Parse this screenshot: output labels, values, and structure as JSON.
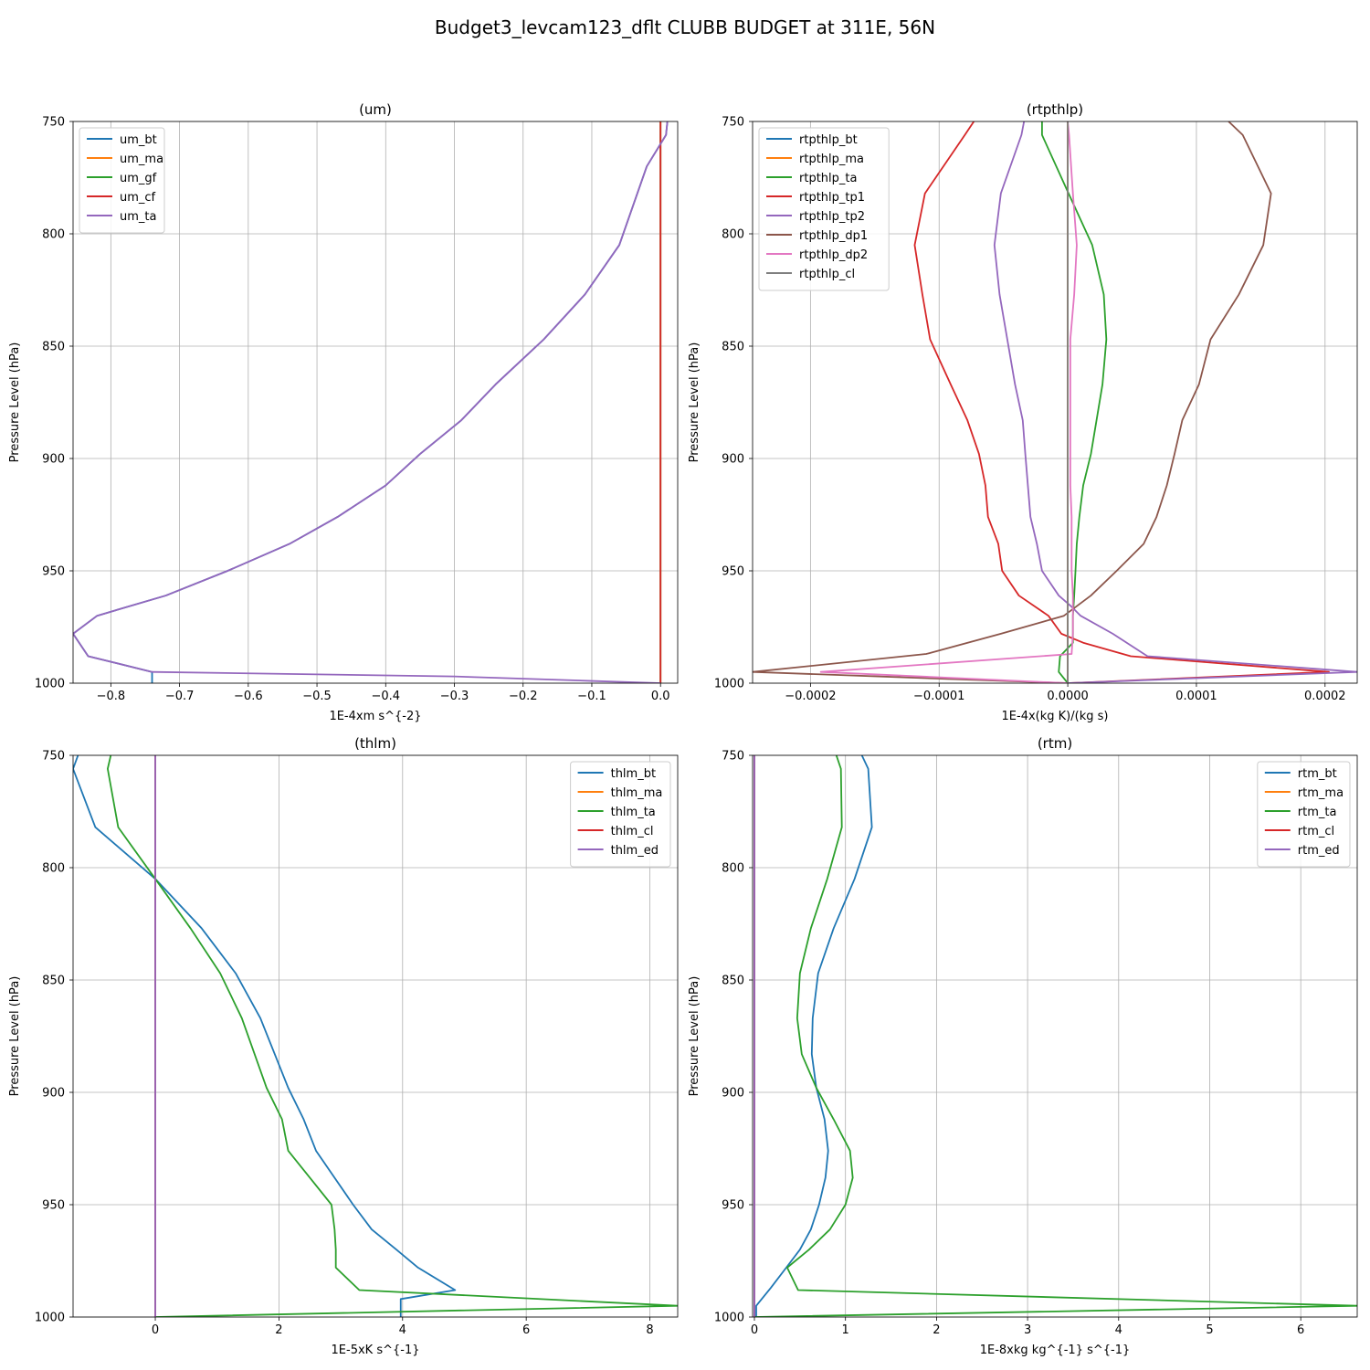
{
  "suptitle": "Budget3_levcam123_dflt CLUBB BUDGET at 311E, 56N",
  "colors": {
    "C0": "#1f77b4",
    "C1": "#ff7f0e",
    "C2": "#2ca02c",
    "C3": "#d62728",
    "C4": "#9467bd",
    "C5": "#8c564b",
    "C6": "#e377c2",
    "C7": "#7f7f7f"
  },
  "chart_data": [
    {
      "type": "line",
      "title": "(um)",
      "xlabel": "1E-4xm s^{-2}",
      "ylabel": "Pressure Level (hPa)",
      "xlim": [
        -0.855,
        0.025
      ],
      "ylim": [
        1000,
        750
      ],
      "xticks": [
        -0.8,
        -0.7,
        -0.6,
        -0.5,
        -0.4,
        -0.3,
        -0.2,
        -0.1,
        0.0
      ],
      "xtick_labels": [
        "−0.8",
        "−0.7",
        "−0.6",
        "−0.5",
        "−0.4",
        "−0.3",
        "−0.2",
        "−0.1",
        "0.0"
      ],
      "yticks": [
        750,
        800,
        850,
        900,
        950,
        1000
      ],
      "ytick_labels": [
        "750",
        "800",
        "850",
        "900",
        "950",
        "1000"
      ],
      "grid": true,
      "legend_loc": "upper-left",
      "series": [
        {
          "name": "um_bt",
          "color": "C0",
          "x": [
            0.01,
            0.008,
            -0.02,
            -0.06,
            -0.11,
            -0.17,
            -0.24,
            -0.29,
            -0.35,
            -0.4,
            -0.47,
            -0.54,
            -0.63,
            -0.72,
            -0.82,
            -0.855,
            -0.833,
            -0.74,
            -0.74
          ],
          "y": [
            750,
            756,
            770,
            805,
            827,
            847,
            867,
            883,
            898,
            912,
            926,
            938,
            950,
            961,
            970,
            978,
            988,
            995,
            1000
          ]
        },
        {
          "name": "um_ma",
          "color": "C1",
          "x": [
            0,
            0
          ],
          "y": [
            750,
            1000
          ]
        },
        {
          "name": "um_gf",
          "color": "C2",
          "x": [
            0,
            0
          ],
          "y": [
            750,
            1000
          ]
        },
        {
          "name": "um_cf",
          "color": "C3",
          "x": [
            0,
            0
          ],
          "y": [
            750,
            1000
          ]
        },
        {
          "name": "um_ta",
          "color": "C4",
          "x": [
            0.01,
            0.008,
            -0.02,
            -0.06,
            -0.11,
            -0.17,
            -0.24,
            -0.29,
            -0.35,
            -0.4,
            -0.47,
            -0.54,
            -0.63,
            -0.72,
            -0.82,
            -0.855,
            -0.833,
            -0.74,
            -0.3,
            -0.1,
            0.0
          ],
          "y": [
            750,
            756,
            770,
            805,
            827,
            847,
            867,
            883,
            898,
            912,
            926,
            938,
            950,
            961,
            970,
            978,
            988,
            995,
            997,
            999,
            1000
          ]
        }
      ]
    },
    {
      "type": "line",
      "title": "(rtpthlp)",
      "xlabel": "1E-4x(kg K)/(kg s)",
      "ylabel": "Pressure Level (hPa)",
      "xlim": [
        -0.000245,
        0.000225
      ],
      "ylim": [
        1000,
        750
      ],
      "xticks": [
        -0.0002,
        -0.0001,
        0.0,
        0.0001,
        0.0002
      ],
      "xtick_labels": [
        "−0.0002",
        "−0.0001",
        "0.0000",
        "0.0001",
        "0.0002"
      ],
      "yticks": [
        750,
        800,
        850,
        900,
        950,
        1000
      ],
      "ytick_labels": [
        "750",
        "800",
        "850",
        "900",
        "950",
        "1000"
      ],
      "grid": true,
      "legend_loc": "upper-left",
      "series": [
        {
          "name": "rtpthlp_bt",
          "color": "C0",
          "x": [
            0,
            0
          ],
          "y": [
            750,
            1000
          ]
        },
        {
          "name": "rtpthlp_ma",
          "color": "C1",
          "x": [
            0,
            0
          ],
          "y": [
            750,
            1000
          ]
        },
        {
          "name": "rtpthlp_ta",
          "color": "C2",
          "x": [
            -2e-05,
            -2e-05,
            -1e-06,
            1.9e-05,
            2.8e-05,
            3e-05,
            2.7e-05,
            1.8e-05,
            1.2e-05,
            9e-06,
            7e-06,
            6e-06,
            5e-06,
            4e-06,
            4e-06,
            4e-06,
            -6e-06,
            -7e-06,
            0.0
          ],
          "y": [
            750,
            756,
            780,
            805,
            827,
            847,
            867,
            898,
            912,
            926,
            938,
            950,
            961,
            970,
            978,
            982,
            988,
            995,
            1000
          ]
        },
        {
          "name": "rtpthlp_tp1",
          "color": "C3",
          "x": [
            -7.3e-05,
            -8e-05,
            -0.000111,
            -0.000119,
            -0.000113,
            -0.000107,
            -9.1e-05,
            -7.8e-05,
            -6.9e-05,
            -6.4e-05,
            -6.2e-05,
            -5.4e-05,
            -5.1e-05,
            -3.8e-05,
            -1.5e-05,
            -5e-06,
            1.2e-05,
            4.9e-05,
            0.000203,
            0.0
          ],
          "y": [
            750,
            756,
            782,
            805,
            827,
            847,
            867,
            883,
            898,
            912,
            926,
            938,
            950,
            961,
            970,
            978,
            982,
            988,
            995,
            1000
          ]
        },
        {
          "name": "rtpthlp_tp2",
          "color": "C4",
          "x": [
            -3.4e-05,
            -3.6e-05,
            -5.2e-05,
            -5.7e-05,
            -5.3e-05,
            -4.7e-05,
            -4.1e-05,
            -3.5e-05,
            -3.3e-05,
            -3.1e-05,
            -2.9e-05,
            -2.4e-05,
            -2e-05,
            -7e-06,
            3e-06,
            1e-05,
            3.5e-05,
            6.2e-05,
            0.000225,
            0.0
          ],
          "y": [
            750,
            756,
            782,
            805,
            827,
            847,
            867,
            883,
            898,
            912,
            926,
            938,
            950,
            961,
            966,
            970,
            978,
            988,
            995,
            1000
          ]
        },
        {
          "name": "rtpthlp_dp1",
          "color": "C5",
          "x": [
            0.000125,
            0.000136,
            0.000158,
            0.000152,
            0.000133,
            0.000111,
            0.000102,
            8.9e-05,
            8.3e-05,
            7.7e-05,
            6.9e-05,
            5.9e-05,
            3.8e-05,
            1.8e-05,
            -3e-06,
            -5.2e-05,
            -0.00011,
            -0.000245,
            0.0
          ],
          "y": [
            750,
            756,
            782,
            805,
            827,
            847,
            867,
            883,
            898,
            912,
            926,
            938,
            950,
            961,
            970,
            978,
            987,
            995,
            1000
          ]
        },
        {
          "name": "rtpthlp_dp2",
          "color": "C6",
          "x": [
            0.0,
            1e-06,
            4e-06,
            7e-06,
            5e-06,
            2e-06,
            2e-06,
            2e-06,
            2e-06,
            3e-06,
            3e-06,
            3e-06,
            4e-06,
            4e-06,
            4e-06,
            3e-06,
            -0.000192,
            0.0
          ],
          "y": [
            750,
            756,
            782,
            805,
            827,
            847,
            867,
            898,
            912,
            926,
            938,
            950,
            961,
            970,
            978,
            987,
            995,
            1000
          ]
        },
        {
          "name": "rtpthlp_cl",
          "color": "C7",
          "x": [
            0,
            0
          ],
          "y": [
            750,
            1000
          ]
        }
      ]
    },
    {
      "type": "line",
      "title": "(thlm)",
      "xlabel": "1E-5xK s^{-1}",
      "ylabel": "Pressure Level (hPa)",
      "xlim": [
        -1.33,
        8.45
      ],
      "ylim": [
        1000,
        750
      ],
      "xticks": [
        0,
        2,
        4,
        6,
        8
      ],
      "xtick_labels": [
        "0",
        "2",
        "4",
        "6",
        "8"
      ],
      "yticks": [
        750,
        800,
        850,
        900,
        950,
        1000
      ],
      "ytick_labels": [
        "750",
        "800",
        "850",
        "900",
        "950",
        "1000"
      ],
      "grid": true,
      "legend_loc": "upper-right",
      "series": [
        {
          "name": "thlm_bt",
          "color": "C0",
          "x": [
            -1.25,
            -1.33,
            -0.97,
            0.0,
            0.75,
            1.3,
            1.7,
            2.15,
            2.4,
            2.6,
            2.9,
            3.2,
            3.5,
            3.9,
            4.25,
            4.85,
            3.97,
            3.97,
            3.97
          ],
          "y": [
            750,
            756,
            782,
            805,
            827,
            847,
            867,
            898,
            912,
            926,
            938,
            950,
            961,
            970,
            978,
            988,
            992,
            995,
            1000
          ]
        },
        {
          "name": "thlm_ma",
          "color": "C1",
          "x": [
            0,
            0
          ],
          "y": [
            750,
            1000
          ]
        },
        {
          "name": "thlm_ta",
          "color": "C2",
          "x": [
            -0.72,
            -0.77,
            -0.6,
            0.0,
            0.57,
            1.05,
            1.4,
            1.8,
            2.05,
            2.15,
            2.5,
            2.85,
            2.9,
            2.92,
            2.92,
            3.3,
            8.45,
            0.0
          ],
          "y": [
            750,
            756,
            782,
            805,
            827,
            847,
            867,
            898,
            912,
            926,
            938,
            950,
            961,
            970,
            978,
            988,
            995,
            1000
          ]
        },
        {
          "name": "thlm_cl",
          "color": "C3",
          "x": [
            0,
            0
          ],
          "y": [
            750,
            1000
          ]
        },
        {
          "name": "thlm_ed",
          "color": "C4",
          "x": [
            0,
            0
          ],
          "y": [
            750,
            1000
          ]
        }
      ]
    },
    {
      "type": "line",
      "title": "(rtm)",
      "xlabel": "1E-8xkg kg^{-1} s^{-1}",
      "ylabel": "Pressure Level (hPa)",
      "xlim": [
        -0.02,
        6.62
      ],
      "ylim": [
        1000,
        750
      ],
      "xticks": [
        0,
        1,
        2,
        3,
        4,
        5,
        6
      ],
      "xtick_labels": [
        "0",
        "1",
        "2",
        "3",
        "4",
        "5",
        "6"
      ],
      "yticks": [
        750,
        800,
        850,
        900,
        950,
        1000
      ],
      "ytick_labels": [
        "750",
        "800",
        "850",
        "900",
        "950",
        "1000"
      ],
      "grid": true,
      "legend_loc": "upper-right",
      "series": [
        {
          "name": "rtm_bt",
          "color": "C0",
          "x": [
            1.18,
            1.25,
            1.29,
            1.1,
            0.87,
            0.7,
            0.64,
            0.63,
            0.68,
            0.77,
            0.81,
            0.78,
            0.71,
            0.62,
            0.5,
            0.35,
            0.18,
            0.02,
            0.02
          ],
          "y": [
            750,
            756,
            782,
            805,
            827,
            847,
            867,
            883,
            898,
            912,
            926,
            938,
            950,
            961,
            970,
            978,
            987,
            995,
            1000
          ]
        },
        {
          "name": "rtm_ma",
          "color": "C1",
          "x": [
            0,
            0
          ],
          "y": [
            750,
            1000
          ]
        },
        {
          "name": "rtm_ta",
          "color": "C2",
          "x": [
            0.9,
            0.95,
            0.96,
            0.8,
            0.62,
            0.5,
            0.47,
            0.52,
            0.68,
            0.87,
            1.05,
            1.08,
            1.0,
            0.83,
            0.6,
            0.36,
            0.48,
            6.62,
            0.0
          ],
          "y": [
            750,
            756,
            782,
            805,
            827,
            847,
            867,
            883,
            898,
            912,
            926,
            938,
            950,
            961,
            970,
            978,
            988,
            995,
            1000
          ]
        },
        {
          "name": "rtm_cl",
          "color": "C3",
          "x": [
            0,
            0
          ],
          "y": [
            750,
            1000
          ]
        },
        {
          "name": "rtm_ed",
          "color": "C4",
          "x": [
            0,
            0
          ],
          "y": [
            750,
            1000
          ]
        }
      ]
    }
  ]
}
